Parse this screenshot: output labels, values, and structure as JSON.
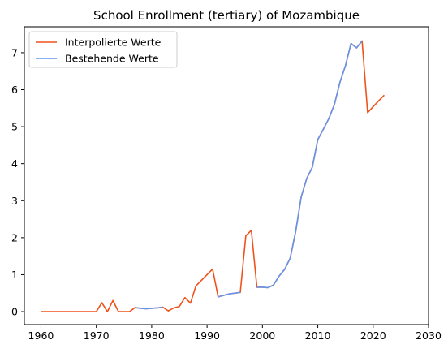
{
  "chart_data": {
    "type": "line",
    "title": "School Enrollment (tertiary) of Mozambique",
    "xlabel": "",
    "ylabel": "",
    "xlim": [
      1957,
      2030
    ],
    "ylim": [
      -0.35,
      7.7
    ],
    "xticks": [
      1960,
      1970,
      1980,
      1990,
      2000,
      2010,
      2020,
      2030
    ],
    "yticks": [
      0,
      1,
      2,
      3,
      4,
      5,
      6,
      7
    ],
    "grid": false,
    "legend_position": "top-left",
    "series": [
      {
        "name": "Interpolierte Werte",
        "color": "#f0521c",
        "x": [
          1960,
          1961,
          1962,
          1963,
          1964,
          1965,
          1966,
          1967,
          1968,
          1969,
          1970,
          1971,
          1972,
          1973,
          1974,
          1975,
          1976,
          1977,
          1978,
          1979,
          1980,
          1981,
          1982,
          1983,
          1984,
          1985,
          1986,
          1987,
          1988,
          1989,
          1990,
          1991,
          1992,
          1993,
          1994,
          1995,
          1996,
          1997,
          1998,
          1999,
          2000,
          2001,
          2002,
          2003,
          2004,
          2005,
          2006,
          2007,
          2008,
          2009,
          2010,
          2011,
          2012,
          2013,
          2014,
          2015,
          2016,
          2017,
          2018,
          2019,
          2020,
          2021,
          2022
        ],
        "values": [
          0.0,
          0.0,
          0.0,
          0.0,
          0.0,
          0.0,
          0.0,
          0.0,
          0.0,
          0.0,
          0.0,
          0.24,
          0.0,
          0.3,
          0.0,
          0.0,
          0.0,
          0.11,
          0.09,
          0.08,
          0.09,
          0.1,
          0.12,
          0.02,
          0.1,
          0.14,
          0.38,
          0.23,
          0.7,
          0.85,
          1.0,
          1.15,
          0.4,
          0.44,
          0.48,
          0.5,
          0.52,
          2.05,
          2.2,
          0.66,
          0.66,
          0.65,
          0.72,
          0.96,
          1.14,
          1.44,
          2.16,
          3.1,
          3.6,
          3.9,
          4.65,
          4.93,
          5.22,
          5.6,
          6.2,
          6.65,
          7.25,
          7.13,
          7.32,
          5.38,
          5.54,
          5.7,
          5.85
        ]
      },
      {
        "name": "Bestehende Werte",
        "color": "#6495ed",
        "x": [
          1977,
          1978,
          1979,
          1980,
          1981,
          1982,
          null,
          1992,
          1993,
          1994,
          1995,
          1996,
          null,
          1999,
          2000,
          2001,
          2002,
          2003,
          2004,
          2005,
          2006,
          2007,
          2008,
          2009,
          2010,
          2011,
          2012,
          2013,
          2014,
          2015,
          2016,
          2017,
          2018
        ],
        "values": [
          0.11,
          0.09,
          0.08,
          0.09,
          0.1,
          0.12,
          null,
          0.4,
          0.44,
          0.48,
          0.5,
          0.52,
          null,
          0.66,
          0.66,
          0.65,
          0.72,
          0.96,
          1.14,
          1.44,
          2.16,
          3.1,
          3.6,
          3.9,
          4.65,
          4.93,
          5.22,
          5.6,
          6.2,
          6.65,
          7.25,
          7.13,
          7.32
        ]
      }
    ]
  }
}
